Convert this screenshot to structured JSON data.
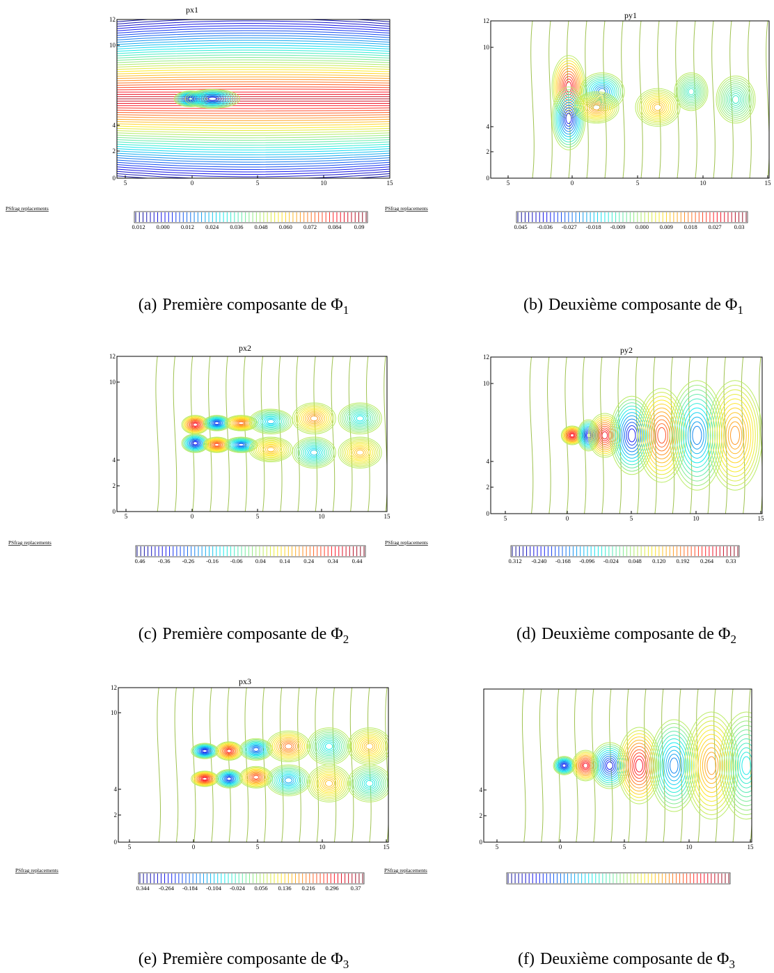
{
  "panels": [
    {
      "title": "px1",
      "xticks": [
        "5",
        "0",
        "5",
        "10",
        "15"
      ],
      "yticks": [
        "12",
        "10",
        "4",
        "2",
        "0"
      ],
      "colorbar": [
        "0.012",
        "0.000",
        "0.012",
        "0.024",
        "0.036",
        "0.048",
        "0.060",
        "0.072",
        "0.084",
        "0.09"
      ],
      "psfrag": "PSfrag replacements",
      "caption": {
        "label": "(a)",
        "text": "Première composante de Φ",
        "sub": "1"
      }
    },
    {
      "title": "py1",
      "xticks": [
        "5",
        "0",
        "5",
        "10",
        "15"
      ],
      "yticks": [
        "12",
        "10",
        "4",
        "2",
        "0"
      ],
      "colorbar": [
        "0.045",
        "-0.036",
        "-0.027",
        "-0.018",
        "-0.009",
        "0.000",
        "0.009",
        "0.018",
        "0.027",
        "0.03"
      ],
      "psfrag": "PSfrag replacements",
      "caption": {
        "label": "(b)",
        "text": "Deuxième composante de Φ",
        "sub": "1"
      }
    },
    {
      "title": "px2",
      "xticks": [
        "5",
        "0",
        "5",
        "10",
        "15"
      ],
      "yticks": [
        "12",
        "10",
        "4",
        "2",
        "0"
      ],
      "colorbar": [
        "0.46",
        "-0.36",
        "-0.26",
        "-0.16",
        "-0.06",
        "0.04",
        "0.14",
        "0.24",
        "0.34",
        "0.44"
      ],
      "psfrag": "PSfrag replacements",
      "caption": {
        "label": "(c)",
        "text": "Première composante de Φ",
        "sub": "2"
      }
    },
    {
      "title": "py2",
      "xticks": [
        "5",
        "0",
        "5",
        "10",
        "15"
      ],
      "yticks": [
        "12",
        "10",
        "4",
        "2",
        "0"
      ],
      "colorbar": [
        "0.312",
        "-0.240",
        "-0.168",
        "-0.096",
        "-0.024",
        "0.048",
        "0.120",
        "0.192",
        "0.264",
        "0.33"
      ],
      "psfrag": "PSfrag replacements",
      "caption": {
        "label": "(d)",
        "text": "Deuxième composante de Φ",
        "sub": "2"
      }
    },
    {
      "title": "px3",
      "xticks": [
        "5",
        "0",
        "5",
        "10",
        "15"
      ],
      "yticks": [
        "12",
        "10",
        "4",
        "2",
        "0"
      ],
      "colorbar": [
        "0.344",
        "-0.264",
        "-0.184",
        "-0.104",
        "-0.024",
        "0.056",
        "0.136",
        "0.216",
        "0.296",
        "0.37"
      ],
      "psfrag": "PSfrag replacements",
      "caption": {
        "label": "(e)",
        "text": "Première composante de Φ",
        "sub": "3"
      }
    },
    {
      "xticks": [
        "5",
        "0",
        "5",
        "10",
        "15"
      ],
      "yticks": [
        "4",
        "2",
        "0"
      ],
      "psfrag": "PSfrag replacements",
      "caption": {
        "label": "(f)",
        "text": "Deuxième composante de Φ",
        "sub": "3"
      }
    }
  ]
}
